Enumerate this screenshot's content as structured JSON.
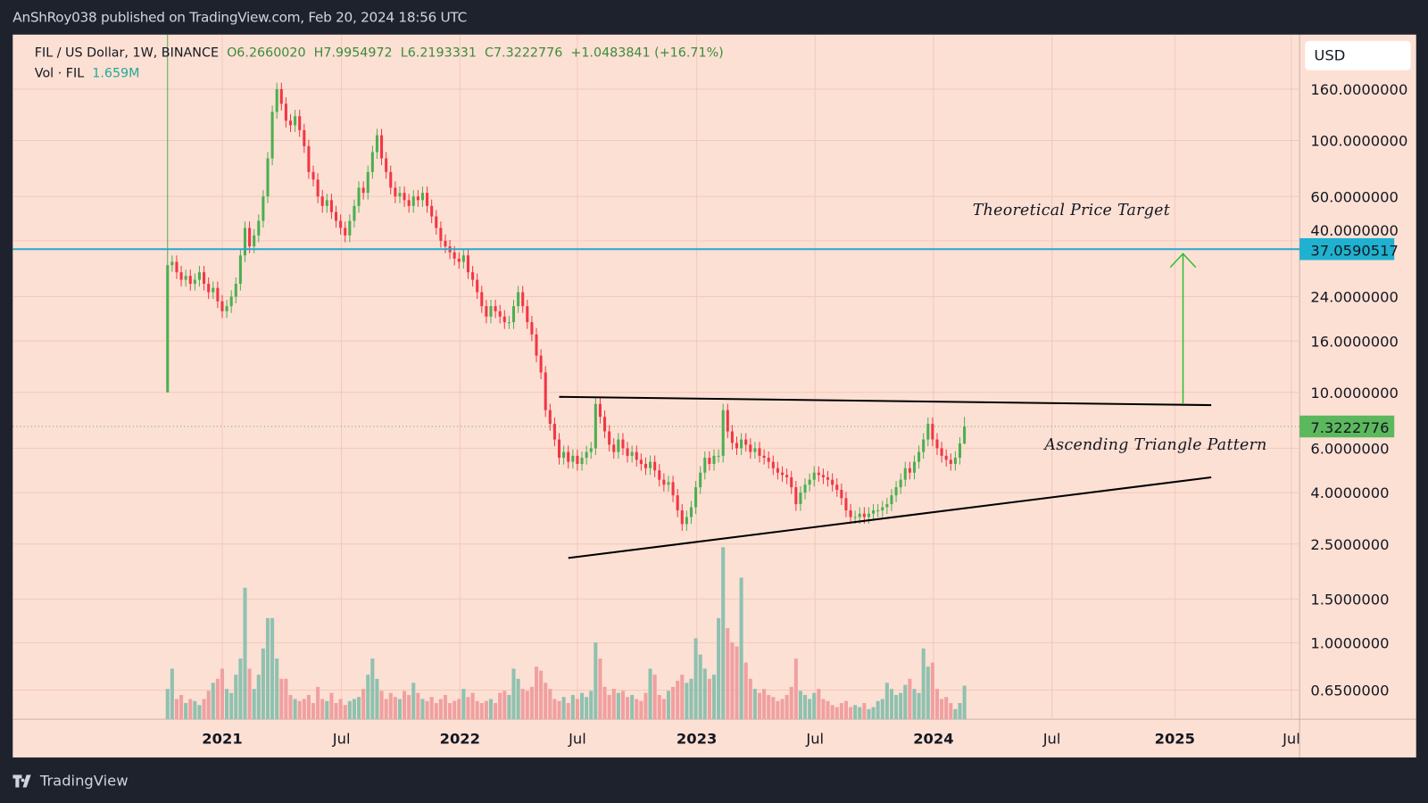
{
  "header": {
    "publisher_line": "AnShRoy038 published on TradingView.com, Feb 20, 2024 18:56 UTC"
  },
  "legend": {
    "symbol": "FIL / US Dollar, 1W, BINANCE",
    "open": "O6.2660020",
    "high": "H7.9954972",
    "low": "L6.2193331",
    "close": "C7.3222776",
    "change": "+1.0483841 (+16.71%)",
    "volume_label": "Vol · FIL",
    "volume_value": "1.659M"
  },
  "price_axis": {
    "currency": "USD",
    "scale": "log",
    "ticks": [
      "160.0000000",
      "100.0000000",
      "60.0000000",
      "40.0000000",
      "24.0000000",
      "16.0000000",
      "10.0000000",
      "6.0000000",
      "4.0000000",
      "2.5000000",
      "1.5000000",
      "1.0000000",
      "0.6500000"
    ],
    "tick_values": [
      160,
      100,
      60,
      40,
      24,
      16,
      10,
      6,
      4,
      2.5,
      1.5,
      1.0,
      0.65
    ],
    "target_label": "37.0590517",
    "last_label": "7.3222776"
  },
  "time_axis": {
    "ticks": [
      "2021",
      "Jul",
      "2022",
      "Jul",
      "2023",
      "Jul",
      "2024",
      "Jul",
      "2025",
      "Jul"
    ]
  },
  "annotations": {
    "target_text": "Theoretical Price Target",
    "pattern_text": "Ascending Triangle Pattern",
    "target_price": 37.0590517,
    "last_price": 7.3222776
  },
  "colors": {
    "up": "#4caf50",
    "down": "#f23645",
    "vol_up": "#8fc1b0",
    "vol_down": "#f0a0a0",
    "target_line": "#26a8d0",
    "arrow": "#2fbf2f",
    "background": "#fde0d4"
  },
  "brand": {
    "name": "TradingView"
  },
  "chart_data": {
    "type": "candlestick",
    "interval": "1W",
    "first_open": 10,
    "closes": [
      32,
      33,
      30,
      28,
      29,
      27,
      28,
      30,
      27,
      25,
      26,
      23,
      21,
      22,
      24,
      27,
      35,
      45,
      38,
      42,
      48,
      60,
      85,
      130,
      160,
      140,
      120,
      115,
      125,
      110,
      95,
      75,
      70,
      60,
      55,
      58,
      52,
      48,
      45,
      42,
      48,
      55,
      65,
      62,
      75,
      90,
      105,
      85,
      75,
      65,
      60,
      62,
      58,
      55,
      60,
      58,
      62,
      55,
      50,
      45,
      40,
      38,
      36,
      34,
      33,
      35,
      30,
      28,
      25,
      22,
      20,
      22,
      21,
      20,
      19,
      19,
      22,
      25,
      22,
      19,
      17,
      14,
      12,
      8.5,
      7.5,
      6.5,
      5.5,
      5.8,
      5.3,
      5.6,
      5.2,
      5.5,
      5.8,
      6.0,
      9.0,
      8.0,
      7.0,
      6.2,
      5.8,
      6.5,
      6.0,
      5.6,
      5.8,
      5.4,
      5.2,
      5.0,
      5.3,
      4.9,
      4.5,
      4.3,
      4.4,
      3.9,
      3.4,
      3.0,
      3.2,
      3.5,
      4.2,
      4.8,
      5.5,
      5.2,
      5.6,
      5.6,
      8.5,
      7.0,
      6.3,
      6.0,
      6.5,
      6.2,
      5.8,
      6.0,
      5.6,
      5.5,
      5.3,
      5.0,
      4.8,
      4.7,
      4.6,
      4.2,
      3.6,
      4.0,
      4.3,
      4.5,
      4.8,
      4.7,
      4.6,
      4.5,
      4.3,
      4.1,
      3.8,
      3.4,
      3.2,
      3.2,
      3.3,
      3.2,
      3.3,
      3.4,
      3.4,
      3.5,
      3.6,
      3.9,
      4.2,
      4.5,
      5.0,
      4.8,
      5.3,
      5.8,
      6.5,
      7.5,
      6.5,
      6.0,
      5.6,
      5.4,
      5.2,
      5.5,
      6.266,
      7.3222776
    ],
    "volumes_millions": [
      1.5,
      2.5,
      1.0,
      1.2,
      0.8,
      1.0,
      0.9,
      0.7,
      1.0,
      1.4,
      1.8,
      2.0,
      2.5,
      1.5,
      1.3,
      2.2,
      3.0,
      6.5,
      2.5,
      1.5,
      2.2,
      3.5,
      5.0,
      5.0,
      3.0,
      2.0,
      2.0,
      1.2,
      1.0,
      0.9,
      1.0,
      1.2,
      0.8,
      1.6,
      1.0,
      0.9,
      1.3,
      0.8,
      1.0,
      0.7,
      0.9,
      1.0,
      1.1,
      1.5,
      2.2,
      3.0,
      2.0,
      1.4,
      1.0,
      1.3,
      1.1,
      1.0,
      1.4,
      1.2,
      1.8,
      1.3,
      1.0,
      0.9,
      1.1,
      0.8,
      1.0,
      1.2,
      0.8,
      0.9,
      1.0,
      1.5,
      1.1,
      1.3,
      0.9,
      0.8,
      0.9,
      1.0,
      0.8,
      1.3,
      1.4,
      1.2,
      2.5,
      2.0,
      1.5,
      1.4,
      1.6,
      2.6,
      2.4,
      1.8,
      1.5,
      1.0,
      0.9,
      1.1,
      0.8,
      1.2,
      1.0,
      1.3,
      1.1,
      1.4,
      3.8,
      3.0,
      1.6,
      1.2,
      1.5,
      1.3,
      1.4,
      1.1,
      1.2,
      1.0,
      0.9,
      1.3,
      2.5,
      2.2,
      1.2,
      1.0,
      1.4,
      1.6,
      1.9,
      2.2,
      1.8,
      2.0,
      4.0,
      3.2,
      2.5,
      2.0,
      2.2,
      5.0,
      8.5,
      4.5,
      3.8,
      3.6,
      7.0,
      2.8,
      2.0,
      1.5,
      1.3,
      1.5,
      1.2,
      1.1,
      0.9,
      1.0,
      1.2,
      1.6,
      3.0,
      1.4,
      1.2,
      1.0,
      1.3,
      1.5,
      1.0,
      0.9,
      0.7,
      0.6,
      0.8,
      0.9,
      0.6,
      0.7,
      0.6,
      0.8,
      0.5,
      0.6,
      0.9,
      1.0,
      1.8,
      1.5,
      1.2,
      1.3,
      1.7,
      2.0,
      1.5,
      1.3,
      3.5,
      2.6,
      2.8,
      1.5,
      1.0,
      1.1,
      0.8,
      0.5,
      0.8,
      1.659
    ],
    "last_candle": {
      "open": 6.266002,
      "high": 7.9954972,
      "low": 6.2193331,
      "close": 7.3222776
    },
    "drawings": {
      "resistance": [
        9.6,
        8.9
      ],
      "support": [
        2.2,
        4.6
      ]
    }
  }
}
